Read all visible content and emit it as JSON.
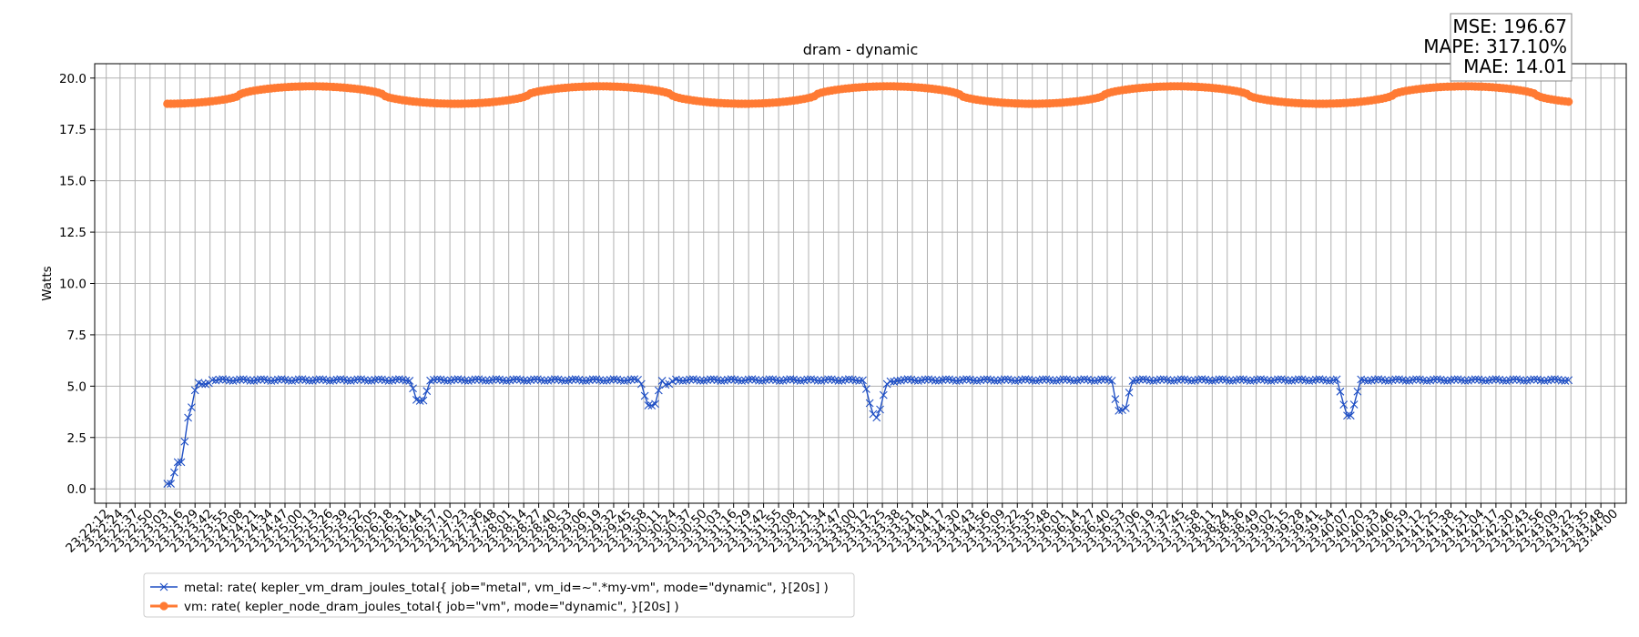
{
  "chart_data": {
    "type": "line",
    "title": "dram - dynamic",
    "xlabel": "",
    "ylabel": "Watts",
    "ylim": [
      -0.7,
      20.7
    ],
    "grid": true,
    "legend_position": "bottom-left",
    "stats_box": [
      "MSE: 196.67",
      "MAPE: 317.10%",
      "MAE: 14.01"
    ],
    "x_tick_labels": [
      "23:22:12",
      "23:22:24",
      "23:22:37",
      "23:22:50",
      "23:23:03",
      "23:23:16",
      "23:23:29",
      "23:23:42",
      "23:23:55",
      "23:24:08",
      "23:24:21",
      "23:24:34",
      "23:24:47",
      "23:25:00",
      "23:25:13",
      "23:25:26",
      "23:25:39",
      "23:25:52",
      "23:26:05",
      "23:26:18",
      "23:26:31",
      "23:26:44",
      "23:26:57",
      "23:27:10",
      "23:27:23",
      "23:27:36",
      "23:27:48",
      "23:28:01",
      "23:28:14",
      "23:28:27",
      "23:28:40",
      "23:28:53",
      "23:29:06",
      "23:29:19",
      "23:29:32",
      "23:29:45",
      "23:29:58",
      "23:30:11",
      "23:30:24",
      "23:30:37",
      "23:30:50",
      "23:31:03",
      "23:31:16",
      "23:31:29",
      "23:31:42",
      "23:31:55",
      "23:32:08",
      "23:32:21",
      "23:32:34",
      "23:32:47",
      "23:33:00",
      "23:33:12",
      "23:33:25",
      "23:33:38",
      "23:33:51",
      "23:34:04",
      "23:34:17",
      "23:34:30",
      "23:34:43",
      "23:34:56",
      "23:35:09",
      "23:35:22",
      "23:35:35",
      "23:35:48",
      "23:36:01",
      "23:36:14",
      "23:36:27",
      "23:36:40",
      "23:36:53",
      "23:37:06",
      "23:37:19",
      "23:37:32",
      "23:37:45",
      "23:37:58",
      "23:38:11",
      "23:38:24",
      "23:38:36",
      "23:38:49",
      "23:39:02",
      "23:39:15",
      "23:39:28",
      "23:39:41",
      "23:39:54",
      "23:40:07",
      "23:40:20",
      "23:40:33",
      "23:40:46",
      "23:40:59",
      "23:41:12",
      "23:41:25",
      "23:41:38",
      "23:41:51",
      "23:42:04",
      "23:42:17",
      "23:42:30",
      "23:42:43",
      "23:42:56",
      "23:43:09",
      "23:43:22",
      "23:43:35",
      "23:43:48",
      "23:44:00"
    ],
    "y_ticks": [
      0.0,
      2.5,
      5.0,
      7.5,
      10.0,
      12.5,
      15.0,
      17.5,
      20.0
    ],
    "x_range": [
      "23:22:12",
      "23:44:00"
    ],
    "series": [
      {
        "name": "metal: rate( kepler_vm_dram_joules_total{ job=\"metal\", vm_id=~\".*my-vm\", mode=\"dynamic\", }[20s] )",
        "color": "#1f4fc4",
        "marker": "x",
        "start": "23:23:05",
        "end": "23:43:22",
        "baseline": 5.3,
        "points": [
          [
            "23:23:05",
            0.25
          ],
          [
            "23:23:08",
            0.25
          ],
          [
            "23:23:11",
            0.8
          ],
          [
            "23:23:14",
            1.3
          ],
          [
            "23:23:17",
            1.3
          ],
          [
            "23:23:20",
            2.3
          ],
          [
            "23:23:22",
            3.3
          ],
          [
            "23:23:25",
            3.8
          ],
          [
            "23:23:28",
            4.3
          ],
          [
            "23:23:30",
            5.3
          ],
          [
            "23:23:33",
            5.1
          ],
          [
            "23:23:36",
            5.1
          ],
          [
            "23:23:40",
            5.1
          ],
          [
            "23:23:44",
            5.3
          ],
          [
            "23:26:35",
            5.3
          ],
          [
            "23:26:38",
            4.9
          ],
          [
            "23:26:41",
            4.3
          ],
          [
            "23:26:44",
            4.25
          ],
          [
            "23:26:47",
            4.3
          ],
          [
            "23:26:50",
            4.8
          ],
          [
            "23:26:53",
            5.3
          ],
          [
            "23:29:55",
            5.3
          ],
          [
            "23:29:58",
            4.8
          ],
          [
            "23:30:01",
            4.1
          ],
          [
            "23:30:04",
            4.0
          ],
          [
            "23:30:08",
            4.1
          ],
          [
            "23:30:11",
            4.8
          ],
          [
            "23:30:14",
            5.3
          ],
          [
            "23:30:17",
            5.1
          ],
          [
            "23:30:21",
            5.1
          ],
          [
            "23:30:25",
            5.3
          ],
          [
            "23:33:09",
            5.3
          ],
          [
            "23:33:12",
            4.6
          ],
          [
            "23:33:15",
            3.9
          ],
          [
            "23:33:18",
            3.5
          ],
          [
            "23:33:21",
            3.5
          ],
          [
            "23:33:24",
            4.1
          ],
          [
            "23:33:27",
            4.8
          ],
          [
            "23:33:30",
            5.2
          ],
          [
            "23:33:34",
            5.2
          ],
          [
            "23:33:38",
            5.3
          ],
          [
            "23:36:44",
            5.3
          ],
          [
            "23:36:47",
            4.4
          ],
          [
            "23:36:50",
            3.8
          ],
          [
            "23:36:53",
            3.8
          ],
          [
            "23:36:56",
            3.9
          ],
          [
            "23:36:59",
            4.7
          ],
          [
            "23:37:02",
            5.3
          ],
          [
            "23:39:59",
            5.3
          ],
          [
            "23:40:02",
            4.7
          ],
          [
            "23:40:05",
            4.1
          ],
          [
            "23:40:08",
            3.6
          ],
          [
            "23:40:11",
            3.6
          ],
          [
            "23:40:14",
            4.1
          ],
          [
            "23:40:17",
            4.7
          ],
          [
            "23:40:20",
            5.3
          ],
          [
            "23:43:22",
            5.3
          ]
        ]
      },
      {
        "name": "vm: rate( kepler_node_dram_joules_total{ job=\"vm\", mode=\"dynamic\", }[20s] )",
        "color": "#ff7a33",
        "marker": "o",
        "start": "23:23:05",
        "end": "23:43:22",
        "oscillation": {
          "min": 18.75,
          "max": 19.6,
          "period_seconds": 250
        }
      }
    ]
  }
}
